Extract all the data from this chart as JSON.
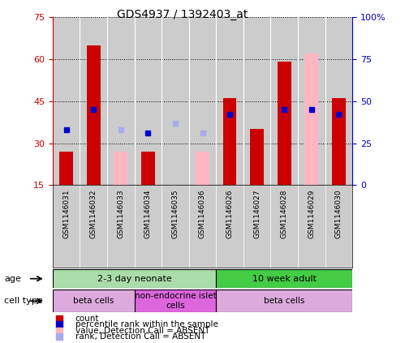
{
  "title": "GDS4937 / 1392403_at",
  "samples": [
    "GSM1146031",
    "GSM1146032",
    "GSM1146033",
    "GSM1146034",
    "GSM1146035",
    "GSM1146036",
    "GSM1146026",
    "GSM1146027",
    "GSM1146028",
    "GSM1146029",
    "GSM1146030"
  ],
  "count": [
    27,
    65,
    null,
    27,
    null,
    null,
    46,
    35,
    59,
    null,
    46
  ],
  "count_absent": [
    null,
    null,
    27,
    null,
    null,
    27,
    null,
    null,
    null,
    62,
    null
  ],
  "rank_pct": [
    33,
    45,
    null,
    31,
    null,
    null,
    42,
    null,
    45,
    45,
    42
  ],
  "rank_absent_pct": [
    null,
    null,
    33,
    null,
    37,
    31,
    null,
    null,
    null,
    null,
    null
  ],
  "ylim_left": [
    15,
    75
  ],
  "ylim_right": [
    0,
    100
  ],
  "yticks_left": [
    15,
    30,
    45,
    60,
    75
  ],
  "yticks_right": [
    0,
    25,
    50,
    75,
    100
  ],
  "ytick_labels_left": [
    "15",
    "30",
    "45",
    "60",
    "75"
  ],
  "ytick_labels_right": [
    "0",
    "25",
    "50",
    "75",
    "100%"
  ],
  "bar_width": 0.5,
  "age_groups": [
    {
      "label": "2-3 day neonate",
      "start": 0,
      "end": 6,
      "color": "#aaddaa"
    },
    {
      "label": "10 week adult",
      "start": 6,
      "end": 11,
      "color": "#44cc44"
    }
  ],
  "cell_groups": [
    {
      "label": "beta cells",
      "start": 0,
      "end": 3,
      "color": "#ddaadd"
    },
    {
      "label": "non-endocrine islet\ncells",
      "start": 3,
      "end": 6,
      "color": "#dd66dd"
    },
    {
      "label": "beta cells",
      "start": 6,
      "end": 11,
      "color": "#ddaadd"
    }
  ],
  "color_count": "#cc0000",
  "color_rank": "#0000cc",
  "color_count_absent": "#ffb6c1",
  "color_rank_absent": "#aaaaee",
  "bg_color": "#cccccc",
  "fig_bg": "#ffffff",
  "legend_items": [
    {
      "label": "count",
      "color": "#cc0000"
    },
    {
      "label": "percentile rank within the sample",
      "color": "#0000cc"
    },
    {
      "label": "value, Detection Call = ABSENT",
      "color": "#ffb6c1"
    },
    {
      "label": "rank, Detection Call = ABSENT",
      "color": "#aaaaee"
    }
  ]
}
